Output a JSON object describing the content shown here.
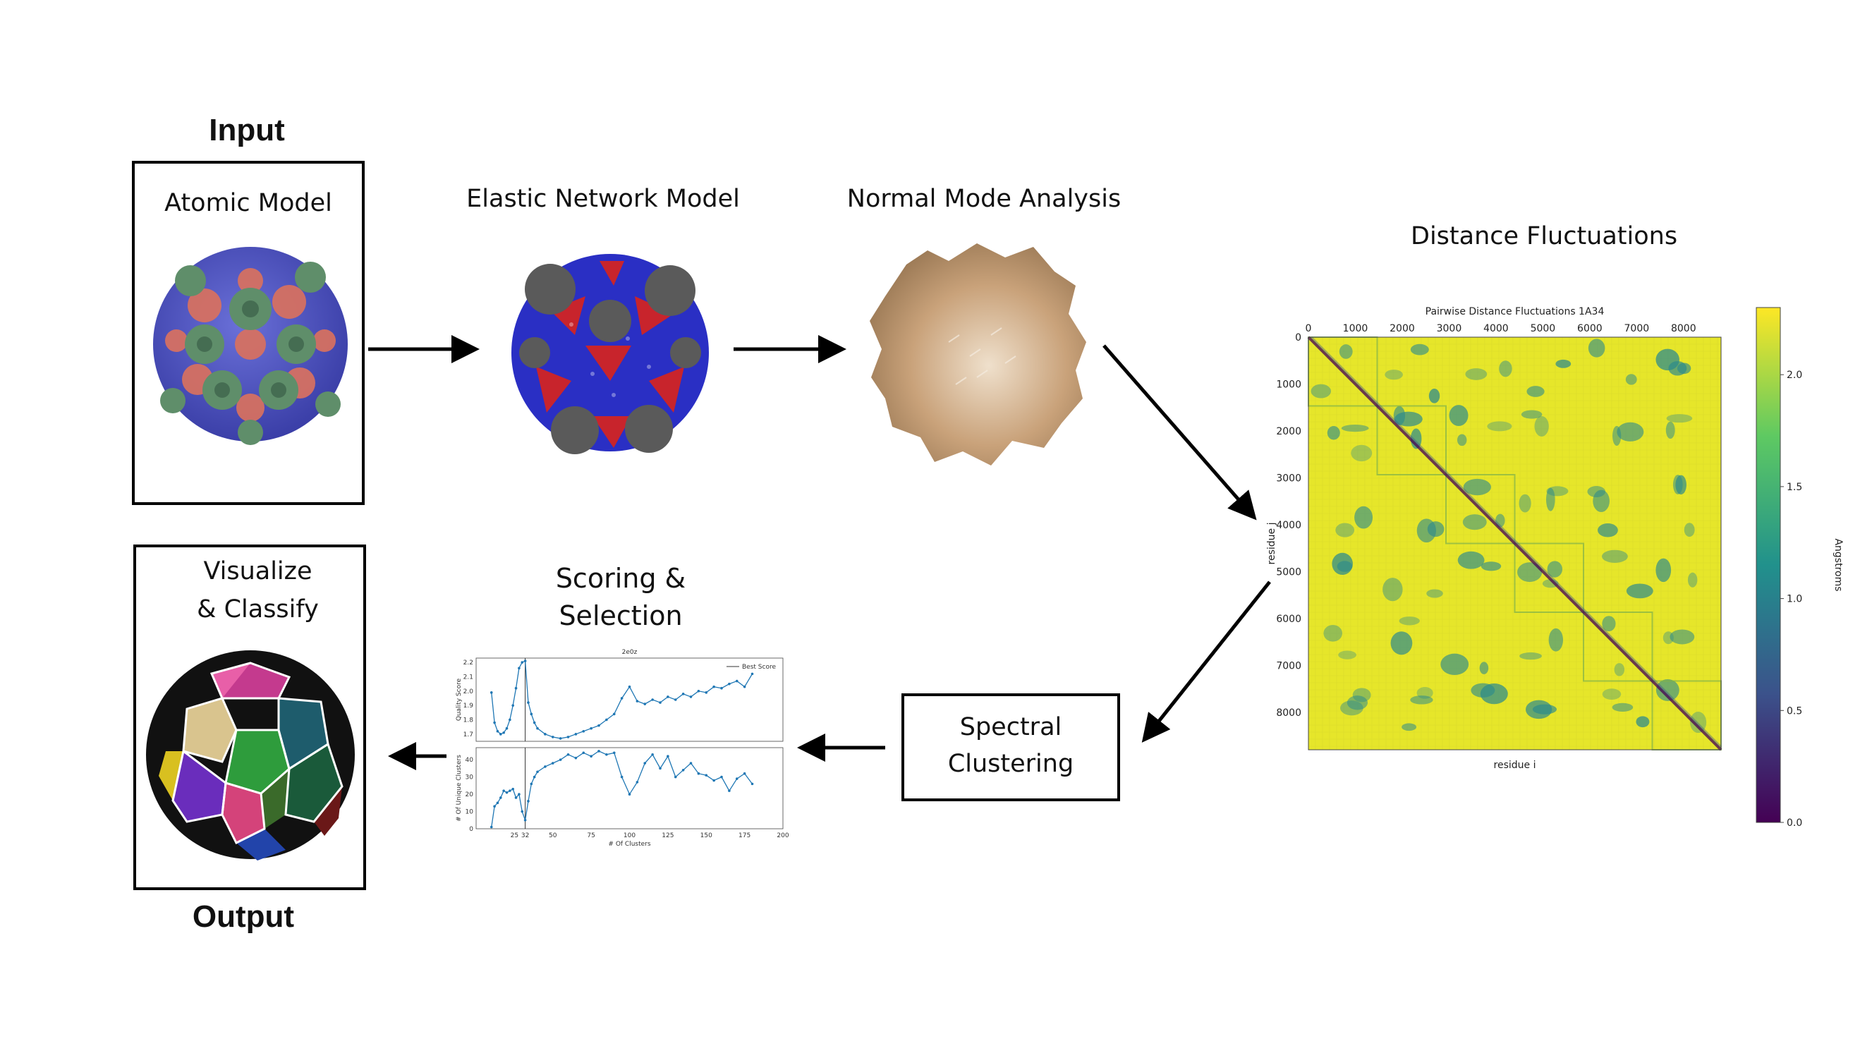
{
  "headings": {
    "input": "Input",
    "output": "Output"
  },
  "steps": {
    "atomic_model": "Atomic Model",
    "elastic_network": "Elastic Network Model",
    "normal_mode": "Normal Mode Analysis",
    "distance_fluct": "Distance Fluctuations",
    "spectral_1": "Spectral",
    "spectral_2": "Clustering",
    "scoring_1": "Scoring &",
    "scoring_2": "Selection",
    "visualize_1": "Visualize",
    "visualize_2": "& Classify"
  },
  "colors": {
    "capsid_green": "#5f8e6a",
    "capsid_blue": "#4a4fc9",
    "capsid_salmon": "#d9715f",
    "enm_red": "#c8242c",
    "enm_blue": "#2a2fc4",
    "enm_gray": "#5a5a5a",
    "nma_tan": "#c9a27a",
    "heat_yellow": "#e6e62a",
    "heat_teal": "#2c8a8c",
    "heat_purple": "#440154",
    "line_blue": "#1f77b4"
  },
  "chart_data": [
    {
      "type": "heatmap",
      "title": "Pairwise Distance Fluctuations 1A34",
      "xlabel": "residue i",
      "ylabel": "residue j",
      "x_ticks": [
        "0",
        "1000",
        "2000",
        "3000",
        "4000",
        "5000",
        "6000",
        "7000",
        "8000"
      ],
      "y_ticks": [
        "0",
        "1000",
        "2000",
        "3000",
        "4000",
        "5000",
        "6000",
        "7000",
        "8000"
      ],
      "colorbar_label": "Angstroms",
      "colorbar_ticks": [
        "0.0",
        "0.5",
        "1.0",
        "1.5",
        "2.0"
      ],
      "range": [
        0,
        8800
      ],
      "blocks": 6
    },
    {
      "type": "line",
      "title": "2e0z",
      "ylabel": "Quality Score",
      "legend": "Best Score",
      "y_ticks": [
        "1.7",
        "1.8",
        "1.9",
        "2.0",
        "2.1",
        "2.2"
      ],
      "ylim": [
        1.65,
        2.23
      ],
      "best_x": 32,
      "x": [
        10,
        12,
        14,
        16,
        18,
        20,
        22,
        24,
        26,
        28,
        30,
        32,
        34,
        36,
        38,
        40,
        45,
        50,
        55,
        60,
        65,
        70,
        75,
        80,
        85,
        90,
        95,
        100,
        105,
        110,
        115,
        120,
        125,
        130,
        135,
        140,
        145,
        150,
        155,
        160,
        165,
        170,
        175,
        180
      ],
      "values": [
        1.99,
        1.78,
        1.72,
        1.7,
        1.71,
        1.74,
        1.8,
        1.9,
        2.02,
        2.16,
        2.2,
        2.21,
        1.92,
        1.84,
        1.78,
        1.74,
        1.7,
        1.68,
        1.67,
        1.68,
        1.7,
        1.72,
        1.74,
        1.76,
        1.8,
        1.84,
        1.95,
        2.03,
        1.93,
        1.91,
        1.94,
        1.92,
        1.96,
        1.94,
        1.98,
        1.96,
        2.0,
        1.99,
        2.03,
        2.02,
        2.05,
        2.07,
        2.03,
        2.12
      ]
    },
    {
      "type": "line",
      "xlabel": "# Of Clusters",
      "ylabel": "# Of Unique Clusters",
      "x_ticks": [
        "25",
        "32",
        "50",
        "75",
        "100",
        "125",
        "150",
        "175",
        "200"
      ],
      "y_ticks": [
        "0",
        "10",
        "20",
        "30",
        "40"
      ],
      "xlim": [
        0,
        200
      ],
      "ylim": [
        0,
        47
      ],
      "best_x": 32,
      "x": [
        10,
        12,
        14,
        16,
        18,
        20,
        22,
        24,
        26,
        28,
        30,
        32,
        34,
        36,
        38,
        40,
        45,
        50,
        55,
        60,
        65,
        70,
        75,
        80,
        85,
        90,
        95,
        100,
        105,
        110,
        115,
        120,
        125,
        130,
        135,
        140,
        145,
        150,
        155,
        160,
        165,
        170,
        175,
        180
      ],
      "values": [
        1,
        13,
        15,
        18,
        22,
        21,
        22,
        23,
        18,
        20,
        10,
        5,
        16,
        26,
        30,
        33,
        36,
        38,
        40,
        43,
        41,
        44,
        42,
        45,
        43,
        44,
        30,
        20,
        27,
        38,
        43,
        35,
        42,
        30,
        34,
        38,
        32,
        31,
        28,
        30,
        22,
        29,
        32,
        26
      ]
    }
  ]
}
